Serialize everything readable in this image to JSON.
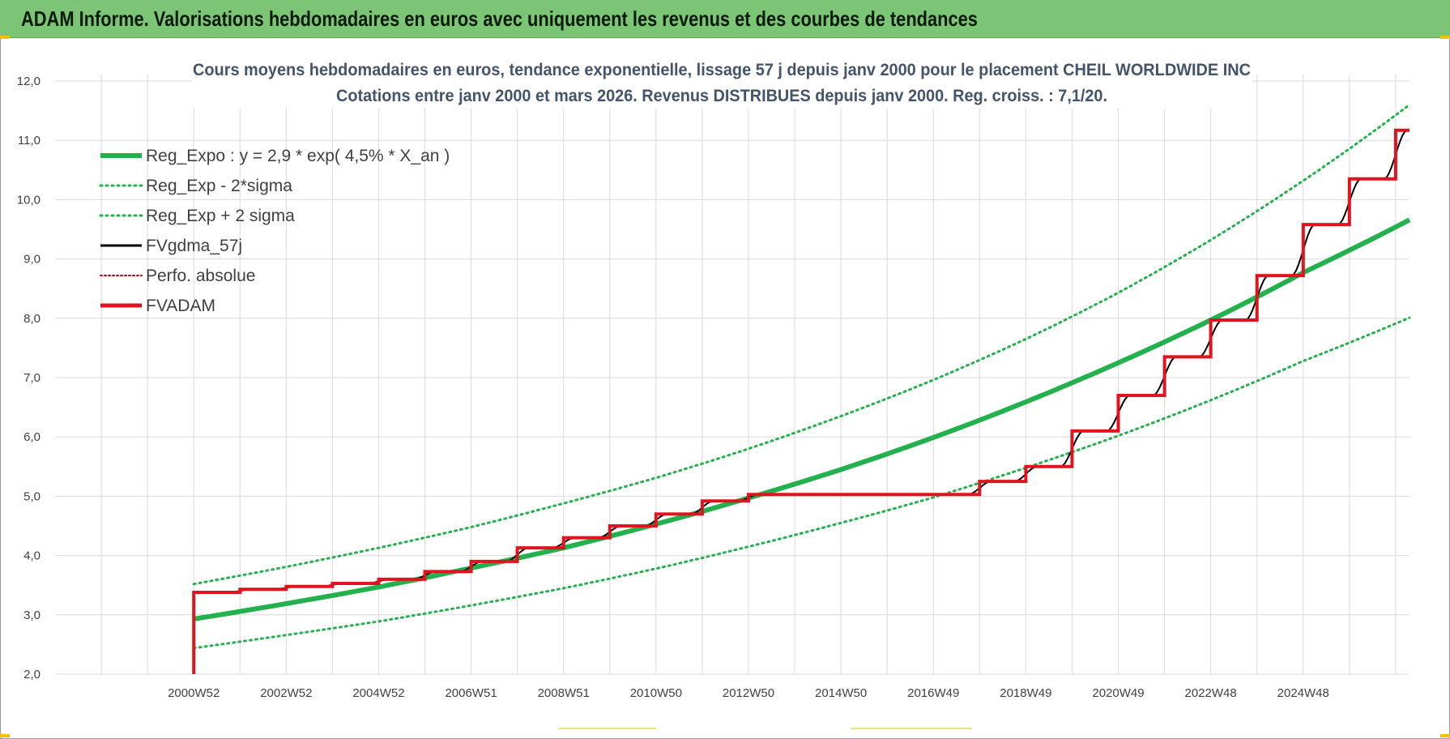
{
  "header": {
    "title": "ADAM Informe. Valorisations hebdomadaires en euros avec uniquement les revenus et des courbes de tendances"
  },
  "colors": {
    "header_bg": "#7cc576",
    "reg_expo": "#22b14c",
    "sigma": "#22b14c",
    "fvgdma": "#000000",
    "perfo": "#c00000",
    "fvadam": "#e0141e",
    "grid": "#d9d9d9"
  },
  "chart_data": {
    "type": "line",
    "title_line1": "Cours moyens hebdomadaires en euros, tendance exponentielle, lissage 57 j depuis janv 2000  pour le placement CHEIL WORLDWIDE INC",
    "title_line2": "Cotations entre janv 2000 et mars 2026. Revenus DISTRIBUES depuis janv 2000.  Reg. croiss. : 7,1/20.",
    "ylim": [
      2.0,
      12.0
    ],
    "y_ticks": [
      "2,0",
      "3,0",
      "4,0",
      "5,0",
      "6,0",
      "7,0",
      "8,0",
      "9,0",
      "10,0",
      "11,0",
      "12,0"
    ],
    "x_ticks": [
      "2000W52",
      "2002W52",
      "2004W52",
      "2006W51",
      "2008W51",
      "2010W50",
      "2012W50",
      "2014W50",
      "2016W49",
      "2018W49",
      "2020W49",
      "2022W48",
      "2024W48"
    ],
    "x_tick_years": [
      2000,
      2002,
      2004,
      2006,
      2008,
      2010,
      2012,
      2014,
      2016,
      2018,
      2020,
      2022,
      2024
    ],
    "xlim_years": [
      1997,
      2026.3
    ],
    "grid": true,
    "legend_position": "top-left",
    "legend": [
      {
        "label": "Reg_Expo : y = 2,9 * exp( 4,5% *  X_an )",
        "style": "solid-thick-green"
      },
      {
        "label": "Reg_Exp - 2*sigma",
        "style": "dotted-green"
      },
      {
        "label": "Reg_Exp + 2 sigma",
        "style": "dotted-green"
      },
      {
        "label": "FVgdma_57j",
        "style": "solid-black"
      },
      {
        "label": "Perfo. absolue",
        "style": "dotted-red"
      },
      {
        "label": "FVADAM",
        "style": "solid-red"
      }
    ],
    "series": [
      {
        "name": "Reg_Expo : y = 2,9 * exp( 4,5% *  X_an )",
        "x": [
          2000.0,
          2002.0,
          2004.0,
          2006.0,
          2008.0,
          2010.0,
          2012.0,
          2014.0,
          2016.0,
          2018.0,
          2020.0,
          2022.0,
          2024.0,
          2026.3
        ],
        "values": [
          2.93,
          3.19,
          3.47,
          3.79,
          4.13,
          4.53,
          4.97,
          5.45,
          5.99,
          6.59,
          7.25,
          7.97,
          8.77,
          9.66
        ]
      },
      {
        "name": "Reg_Exp - 2*sigma",
        "x": [
          2000.0,
          2002.0,
          2004.0,
          2006.0,
          2008.0,
          2010.0,
          2012.0,
          2014.0,
          2016.0,
          2018.0,
          2020.0,
          2022.0,
          2024.0,
          2026.3
        ],
        "values": [
          2.44,
          2.66,
          2.89,
          3.16,
          3.45,
          3.78,
          4.15,
          4.55,
          4.98,
          5.48,
          6.02,
          6.62,
          7.28,
          8.01
        ]
      },
      {
        "name": "Reg_Exp + 2 sigma",
        "x": [
          2000.0,
          2002.0,
          2004.0,
          2006.0,
          2008.0,
          2010.0,
          2012.0,
          2014.0,
          2016.0,
          2018.0,
          2020.0,
          2022.0,
          2024.0,
          2026.3
        ],
        "values": [
          3.52,
          3.81,
          4.13,
          4.48,
          4.88,
          5.31,
          5.8,
          6.35,
          6.96,
          7.65,
          8.43,
          9.32,
          10.32,
          11.6
        ]
      },
      {
        "name": "FVADAM",
        "steps": [
          {
            "x": 2000.0,
            "y": 3.38
          },
          {
            "x": 2001.0,
            "y": 3.43
          },
          {
            "x": 2002.0,
            "y": 3.48
          },
          {
            "x": 2003.0,
            "y": 3.53
          },
          {
            "x": 2004.0,
            "y": 3.6
          },
          {
            "x": 2005.0,
            "y": 3.73
          },
          {
            "x": 2006.0,
            "y": 3.9
          },
          {
            "x": 2007.0,
            "y": 4.13
          },
          {
            "x": 2008.0,
            "y": 4.3
          },
          {
            "x": 2009.0,
            "y": 4.5
          },
          {
            "x": 2010.0,
            "y": 4.7
          },
          {
            "x": 2011.0,
            "y": 4.92
          },
          {
            "x": 2012.0,
            "y": 5.03
          },
          {
            "x": 2017.0,
            "y": 5.25
          },
          {
            "x": 2018.0,
            "y": 5.5
          },
          {
            "x": 2019.0,
            "y": 6.1
          },
          {
            "x": 2020.0,
            "y": 6.7
          },
          {
            "x": 2021.0,
            "y": 7.35
          },
          {
            "x": 2022.0,
            "y": 7.97
          },
          {
            "x": 2023.0,
            "y": 8.72
          },
          {
            "x": 2024.0,
            "y": 9.58
          },
          {
            "x": 2025.0,
            "y": 10.35
          },
          {
            "x": 2026.0,
            "y": 11.17
          }
        ],
        "start_y": 2.0,
        "end_x": 2026.3
      }
    ]
  }
}
